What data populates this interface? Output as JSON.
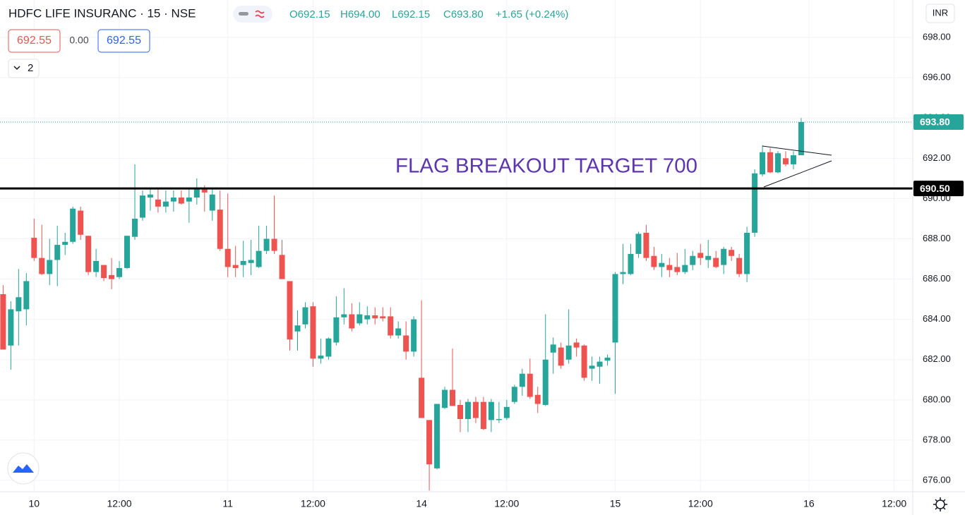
{
  "header": {
    "title": "HDFC LIFE INSURANC · 15 · NSE",
    "ohlc": [
      "O692.15",
      "H694.00",
      "L692.15",
      "C693.80",
      "+1.65 (+0.24%)"
    ],
    "sell": "692.55",
    "spread": "0.00",
    "buy": "692.55",
    "indicators": "2",
    "currency": "INR"
  },
  "chart_data": {
    "type": "candlestick",
    "annotation": "FLAG BREAKOUT TARGET 700",
    "up_color": "#26a69a",
    "down_color": "#ef5350",
    "grid": true,
    "xlim": [
      -0.4,
      117.4
    ],
    "xticks": [
      {
        "value": 4,
        "label": "10"
      },
      {
        "value": 15,
        "label": "12:00"
      },
      {
        "value": 29,
        "label": "11"
      },
      {
        "value": 40,
        "label": "12:00"
      },
      {
        "value": 54,
        "label": "14"
      },
      {
        "value": 65,
        "label": "12:00"
      },
      {
        "value": 79,
        "label": "15"
      },
      {
        "value": 90,
        "label": "12:00"
      },
      {
        "value": 104,
        "label": "16"
      },
      {
        "value": 115,
        "label": "12:00"
      }
    ],
    "ylim": [
      675.44,
      699.86
    ],
    "yticks": [
      {
        "value": 676,
        "label": "676.00"
      },
      {
        "value": 678,
        "label": "678.00"
      },
      {
        "value": 680,
        "label": "680.00"
      },
      {
        "value": 682,
        "label": "682.00"
      },
      {
        "value": 684,
        "label": "684.00"
      },
      {
        "value": 686,
        "label": "686.00"
      },
      {
        "value": 688,
        "label": "688.00"
      },
      {
        "value": 690,
        "label": "690.00"
      },
      {
        "value": 692,
        "label": "692.00"
      },
      {
        "value": 694,
        "label": "694.00"
      },
      {
        "value": 696,
        "label": "696.00"
      },
      {
        "value": 698,
        "label": "698.00"
      }
    ],
    "price_lines": [
      {
        "value": 693.8,
        "label": "693.80",
        "color": "#26a69a"
      },
      {
        "value": 690.5,
        "label": "690.50",
        "color": "#000000"
      }
    ],
    "open": [
      685.25,
      682.7,
      684.4,
      684.5,
      688.05,
      687.05,
      686.25,
      686.95,
      687.7,
      687.85,
      689.4,
      688.15,
      686.35,
      686.7,
      686.2,
      686.1,
      686.55,
      688.1,
      689.05,
      690.05,
      689.95,
      689.6,
      689.85,
      690.05,
      689.85,
      690.05,
      690.45,
      689.4,
      689.45,
      687.5,
      686.7,
      686.7,
      686.8,
      686.6,
      687.4,
      688.0,
      687.2,
      685.9,
      683.4,
      683.75,
      684.65,
      682.05,
      682.15,
      682.85,
      684.1,
      684.25,
      683.8,
      684.0,
      684.2,
      684.15,
      684.15,
      683.2,
      683.2,
      682.4,
      681.1,
      679.0,
      676.6,
      679.6,
      680.5,
      679.75,
      679.05,
      679.9,
      679.9,
      679.0,
      679.0,
      679.1,
      679.9,
      680.65,
      681.3,
      680.25,
      679.75,
      682.35,
      682.6,
      682.0,
      682.85,
      682.7,
      681.55,
      681.65,
      681.95,
      682.85,
      686.25,
      686.25,
      687.25,
      688.3,
      687.15,
      686.6,
      686.7,
      686.6,
      686.35,
      686.7,
      687.3,
      686.95,
      687.05,
      686.7,
      687.45,
      687.05,
      686.25,
      688.3,
      691.2,
      692.3,
      691.3,
      692.0,
      691.7,
      692.15
    ],
    "high": [
      685.7,
      684.9,
      686.5,
      686.3,
      689.0,
      688.7,
      688.0,
      688.65,
      688.3,
      689.6,
      689.6,
      688.15,
      687.5,
      686.7,
      687.05,
      686.9,
      688.15,
      691.7,
      690.4,
      690.45,
      690.45,
      690.4,
      690.4,
      690.4,
      690.45,
      691.0,
      690.65,
      690.45,
      690.4,
      690.25,
      687.65,
      687.9,
      687.95,
      688.65,
      688.65,
      690.15,
      687.95,
      685.9,
      684.45,
      684.85,
      684.85,
      683.05,
      683.1,
      685.15,
      685.55,
      684.8,
      684.85,
      684.65,
      684.6,
      684.6,
      684.6,
      683.9,
      683.9,
      684.15,
      684.95,
      679.0,
      679.8,
      680.65,
      682.55,
      680.0,
      680.05,
      680.15,
      680.15,
      680.05,
      679.9,
      680.0,
      680.75,
      681.55,
      682.05,
      680.65,
      684.25,
      683.1,
      682.85,
      684.5,
      683.05,
      682.75,
      682.15,
      682.15,
      682.25,
      686.35,
      687.75,
      687.75,
      688.35,
      688.7,
      687.6,
      687.25,
      687.05,
      687.3,
      687.5,
      687.4,
      687.75,
      687.95,
      687.4,
      687.6,
      687.6,
      687.25,
      688.6,
      691.45,
      692.65,
      692.5,
      692.35,
      692.35,
      692.35,
      694.0
    ],
    "low": [
      682.5,
      681.5,
      682.7,
      683.7,
      686.9,
      686.2,
      685.7,
      685.65,
      687.2,
      687.75,
      687.95,
      686.2,
      686.1,
      685.9,
      685.5,
      686.0,
      686.5,
      687.95,
      688.9,
      689.4,
      689.3,
      689.3,
      689.35,
      689.7,
      688.8,
      689.7,
      689.35,
      688.9,
      687.4,
      686.1,
      686.1,
      686.1,
      686.2,
      686.55,
      687.25,
      687.25,
      686.0,
      682.45,
      682.45,
      683.55,
      681.65,
      681.8,
      682.0,
      682.7,
      683.75,
      683.4,
      683.7,
      683.75,
      683.75,
      683.9,
      683.05,
      683.05,
      682.0,
      682.15,
      679.1,
      675.5,
      676.55,
      679.55,
      679.7,
      678.4,
      678.4,
      678.85,
      678.5,
      678.4,
      678.85,
      679.0,
      679.8,
      680.2,
      680.05,
      679.35,
      679.7,
      681.3,
      681.55,
      681.8,
      682.15,
      680.95,
      680.95,
      680.8,
      681.7,
      680.3,
      685.75,
      686.2,
      687.05,
      686.9,
      686.45,
      686.1,
      686.1,
      686.2,
      686.25,
      686.45,
      686.7,
      686.55,
      686.55,
      686.25,
      686.9,
      686.1,
      685.85,
      688.1,
      691.1,
      691.25,
      691.25,
      691.6,
      691.45,
      692.15
    ],
    "close": [
      682.5,
      684.5,
      685.1,
      685.9,
      687.05,
      686.25,
      686.95,
      687.7,
      687.85,
      689.5,
      688.2,
      686.35,
      686.9,
      686.05,
      686.0,
      686.55,
      688.15,
      689.0,
      690.15,
      690.2,
      689.6,
      689.85,
      690.05,
      689.75,
      690.05,
      690.45,
      690.3,
      690.2,
      687.5,
      686.6,
      686.55,
      686.9,
      686.95,
      687.4,
      688.0,
      687.4,
      686.0,
      683.0,
      683.7,
      684.6,
      682.05,
      682.2,
      683.05,
      684.1,
      684.25,
      683.55,
      684.25,
      684.2,
      684.05,
      684.05,
      683.2,
      683.55,
      682.4,
      684.0,
      679.1,
      676.8,
      679.8,
      680.5,
      679.7,
      679.05,
      679.9,
      679.1,
      678.55,
      679.9,
      679.05,
      679.65,
      680.65,
      681.3,
      680.15,
      679.8,
      682.0,
      682.75,
      681.7,
      682.7,
      682.6,
      681.1,
      681.7,
      681.9,
      682.1,
      686.25,
      686.35,
      687.25,
      688.25,
      687.05,
      686.6,
      686.8,
      686.45,
      686.35,
      686.7,
      687.15,
      687.05,
      687.15,
      686.6,
      687.5,
      687.15,
      686.25,
      688.3,
      691.25,
      692.3,
      691.3,
      692.25,
      691.7,
      692.15,
      693.8
    ]
  }
}
